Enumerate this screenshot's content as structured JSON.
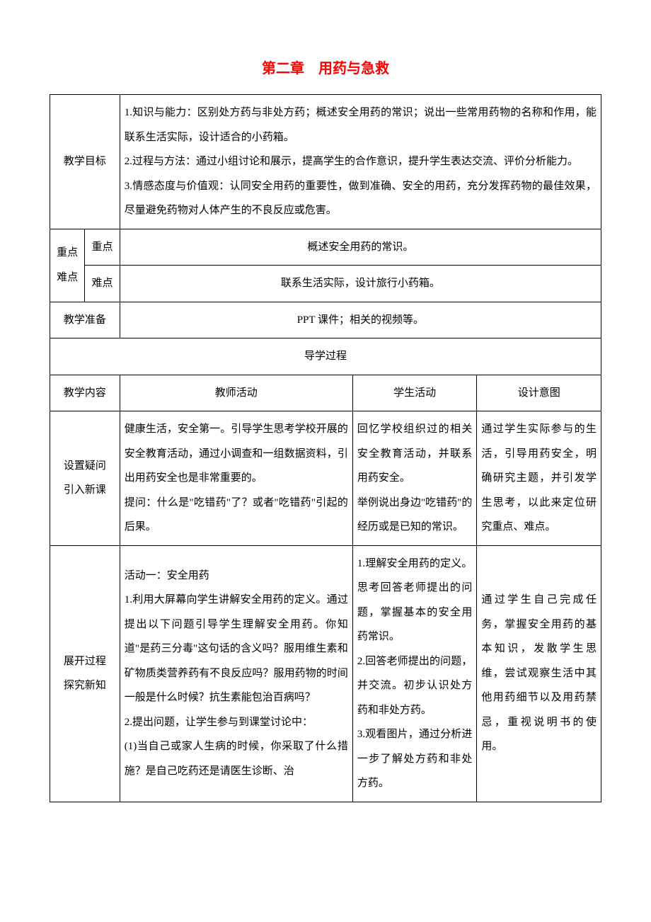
{
  "title": "第二章　用药与急救",
  "rows": {
    "goal_label": "教学目标",
    "goal_text": "1.知识与能力：区别处方药与非处方药；概述安全用药的常识；说出一些常用药物的名称和作用，能联系生活实际，设计适合的小药箱。\n2.过程与方法：通过小组讨论和展示，提高学生的合作意识，提升学生表达交流、评价分析能力。\n3.情感态度与价值观：认同安全用药的重要性，做到准确、安全的用药，充分发挥药物的最佳效果，尽量避免药物对人体产生的不良反应或危害。",
    "kd_group_label": "重点难点",
    "kd_key_label": "重点",
    "kd_key_text": "概述安全用药的常识。",
    "kd_diff_label": "难点",
    "kd_diff_text": "联系生活实际，设计旅行小药箱。",
    "prep_label": "教学准备",
    "prep_text": "PPT 课件；相关的视频等。",
    "process_header": "导学过程",
    "col_content": "教学内容",
    "col_teacher": "教师活动",
    "col_student": "学生活动",
    "col_intent": "设计意图",
    "intro_label": "设置疑问\n引入新课",
    "intro_teacher": "健康生活，安全第一。引导学生思考学校开展的安全教育活动，通过小调查和一组数据资料，引出用药安全也是非常重要的。\n提问：什么是\"吃错药\"了？或者\"吃错药\"引起的后果。",
    "intro_student": "回忆学校组织过的相关安全教育活动，并联系用药安全。\n举例说出身边\"吃错药\"的经历或是已知的常识。",
    "intro_intent": "通过学生实际参与的生活，引导用药安全，明确研究主题，并引发学生思考，以此来定位研究重点、难点。",
    "explore_label": "展开过程\n探究新知",
    "explore_teacher": "活动一：安全用药\n1.利用大屏幕向学生讲解安全用药的定义。通过提出以下问题引导学生理解安全用药。你知道\"是药三分毒\"这句话的含义吗？服用维生素和矿物质类营养药有不良反应吗？服用药物的时间一般是什么时候？抗生素能包治百病吗？\n2.提出问题，让学生参与到课堂讨论中：\n(1)当自己或家人生病的时候，你采取了什么措施？是自己吃药还是请医生诊断、治",
    "explore_student": "1.理解安全用药的定义。思考回答老师提出的问题，掌握基本的安全用药常识。\n2.回答老师提出的问题，并交流。初步认识处方药和非处方药。\n3.观看图片，通过分析进一步了解处方药和非处方药。",
    "explore_intent": "通过学生自己完成任务，掌握安全用药的基本知识，发散学生思维，尝试观察生活中其他用药细节以及用药禁忌，重视说明书的使用。"
  }
}
